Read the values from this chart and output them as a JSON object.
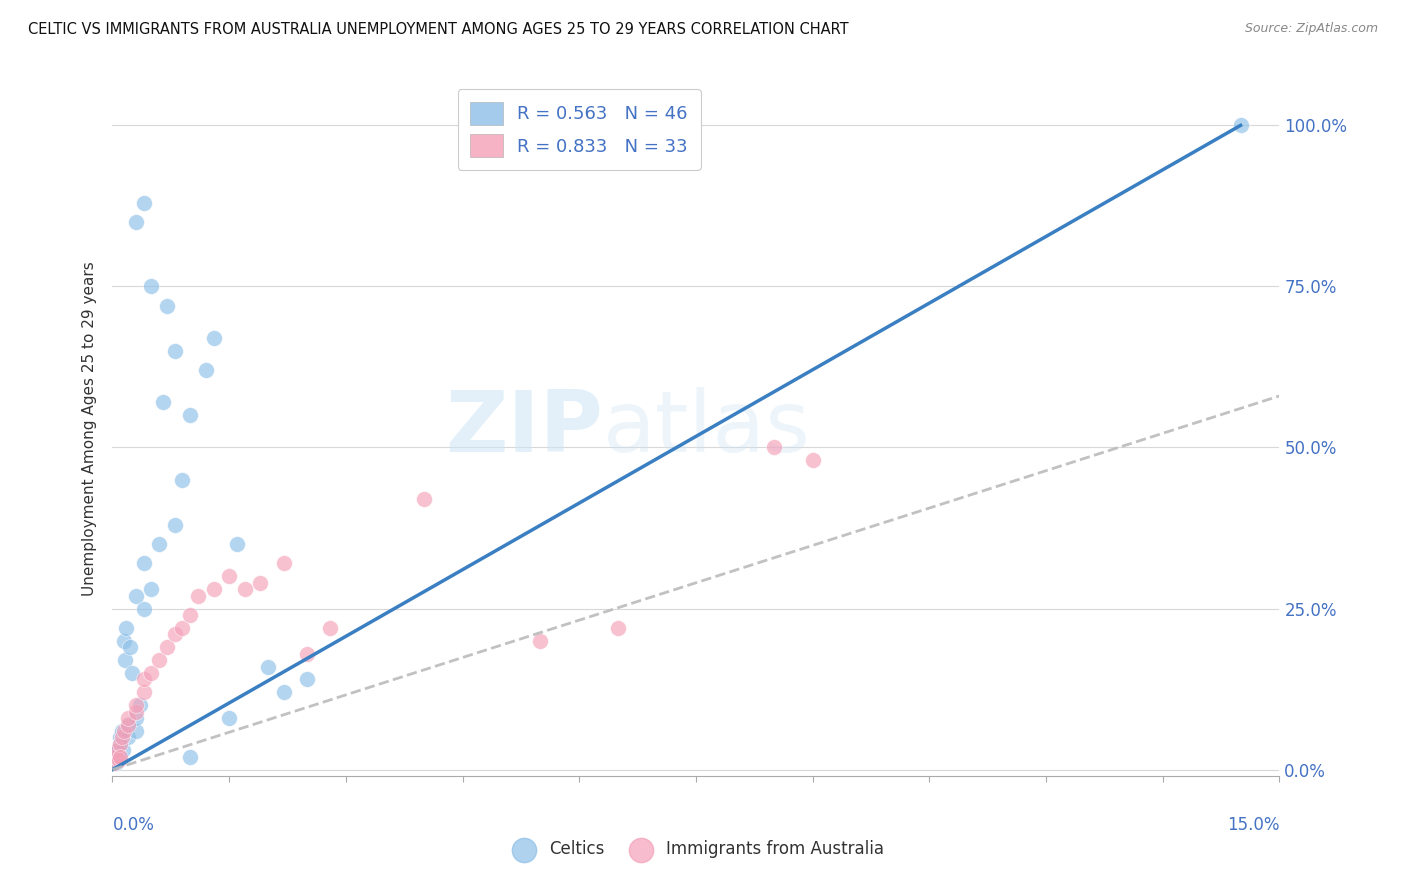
{
  "title": "CELTIC VS IMMIGRANTS FROM AUSTRALIA UNEMPLOYMENT AMONG AGES 25 TO 29 YEARS CORRELATION CHART",
  "source": "Source: ZipAtlas.com",
  "ylabel": "Unemployment Among Ages 25 to 29 years",
  "ylabel_right_ticks": [
    "0.0%",
    "25.0%",
    "50.0%",
    "75.0%",
    "100.0%"
  ],
  "watermark_text": "ZIPatlas",
  "legend1_label": "R = 0.563   N = 46",
  "legend2_label": "R = 0.833   N = 33",
  "celtics_color": "#8DBFE8",
  "immigrants_color": "#F4A0B8",
  "celtics_line_color": "#3A7FC1",
  "immigrants_line_color": "#BBBBBB",
  "xlim": [
    0.0,
    0.15
  ],
  "ylim": [
    -0.01,
    1.07
  ],
  "celtics_x": [
    0.0002,
    0.0003,
    0.0004,
    0.0005,
    0.0005,
    0.0006,
    0.0007,
    0.0008,
    0.001,
    0.001,
    0.001,
    0.0012,
    0.0013,
    0.0015,
    0.0016,
    0.0018,
    0.002,
    0.002,
    0.0022,
    0.0025,
    0.003,
    0.003,
    0.003,
    0.0035,
    0.004,
    0.004,
    0.005,
    0.006,
    0.0065,
    0.008,
    0.009,
    0.01,
    0.012,
    0.013,
    0.016,
    0.02,
    0.022,
    0.025,
    0.003,
    0.004,
    0.005,
    0.007,
    0.008,
    0.01,
    0.015,
    0.145
  ],
  "celtics_y": [
    0.01,
    0.02,
    0.015,
    0.025,
    0.01,
    0.02,
    0.03,
    0.02,
    0.04,
    0.05,
    0.02,
    0.06,
    0.03,
    0.2,
    0.17,
    0.22,
    0.05,
    0.07,
    0.19,
    0.15,
    0.06,
    0.08,
    0.27,
    0.1,
    0.25,
    0.32,
    0.28,
    0.35,
    0.57,
    0.38,
    0.45,
    0.55,
    0.62,
    0.67,
    0.35,
    0.16,
    0.12,
    0.14,
    0.85,
    0.88,
    0.75,
    0.72,
    0.65,
    0.02,
    0.08,
    1.0
  ],
  "immigrants_x": [
    0.0002,
    0.0004,
    0.0006,
    0.0008,
    0.001,
    0.001,
    0.0012,
    0.0015,
    0.002,
    0.002,
    0.003,
    0.003,
    0.004,
    0.004,
    0.005,
    0.006,
    0.007,
    0.008,
    0.009,
    0.01,
    0.011,
    0.013,
    0.015,
    0.017,
    0.019,
    0.022,
    0.025,
    0.028,
    0.04,
    0.055,
    0.065,
    0.085,
    0.09
  ],
  "immigrants_y": [
    0.01,
    0.02,
    0.03,
    0.015,
    0.04,
    0.02,
    0.05,
    0.06,
    0.07,
    0.08,
    0.09,
    0.1,
    0.12,
    0.14,
    0.15,
    0.17,
    0.19,
    0.21,
    0.22,
    0.24,
    0.27,
    0.28,
    0.3,
    0.28,
    0.29,
    0.32,
    0.18,
    0.22,
    0.42,
    0.2,
    0.22,
    0.5,
    0.48
  ],
  "celtics_line_x": [
    0.0,
    0.145
  ],
  "celtics_line_y": [
    0.0,
    1.0
  ],
  "immigrants_line_x": [
    0.0,
    0.15
  ],
  "immigrants_line_y": [
    0.0,
    0.58
  ]
}
